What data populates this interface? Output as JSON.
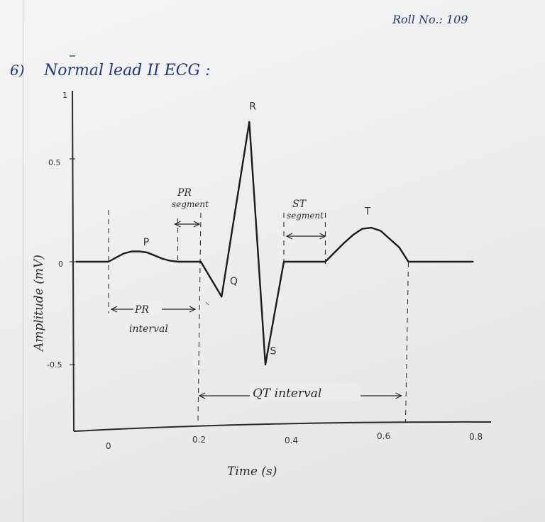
{
  "header": {
    "roll_no": "Roll No.: 109",
    "question_number": "6)",
    "title": "Normal lead II ECG :"
  },
  "chart_data": {
    "type": "line",
    "title": "Normal lead II ECG",
    "xlabel": "Time (s)",
    "ylabel": "Amplitude (mV)",
    "xlim": [
      0,
      0.8
    ],
    "ylim": [
      -0.75,
      1
    ],
    "x_ticks": [
      {
        "value": 0,
        "label": "0"
      },
      {
        "value": 0.2,
        "label": "0.2"
      },
      {
        "value": 0.4,
        "label": "0.4"
      },
      {
        "value": 0.6,
        "label": "0.6"
      },
      {
        "value": 0.8,
        "label": "0.8"
      }
    ],
    "y_ticks": [
      {
        "value": 1,
        "label": "1"
      },
      {
        "value": 0.5,
        "label": "0.5"
      },
      {
        "value": 0,
        "label": "0"
      },
      {
        "value": -0.5,
        "label": "-0.5"
      }
    ],
    "grid": false,
    "series": [
      {
        "name": "Lead II",
        "x": [
          -0.07,
          0.0,
          0.016,
          0.033,
          0.05,
          0.067,
          0.083,
          0.1,
          0.116,
          0.133,
          0.15,
          0.2,
          0.245,
          0.305,
          0.34,
          0.38,
          0.47,
          0.49,
          0.51,
          0.53,
          0.55,
          0.57,
          0.59,
          0.61,
          0.63,
          0.65,
          0.79
        ],
        "y": [
          0,
          0,
          0.02,
          0.04,
          0.05,
          0.05,
          0.045,
          0.03,
          0.015,
          0.005,
          0,
          0,
          -0.17,
          0.68,
          -0.5,
          0,
          0,
          0.045,
          0.09,
          0.13,
          0.16,
          0.165,
          0.15,
          0.11,
          0.07,
          0,
          0
        ]
      }
    ],
    "annotations": [
      {
        "text": "P",
        "x": 0.075,
        "y": 0.08
      },
      {
        "text": "R",
        "x": 0.305,
        "y": 0.74
      },
      {
        "text": "Q",
        "x": 0.263,
        "y": -0.11
      },
      {
        "text": "S",
        "x": 0.35,
        "y": -0.45
      },
      {
        "text": "T",
        "x": 0.555,
        "y": 0.23
      }
    ],
    "intervals": [
      {
        "label_line1": "PR",
        "label_line2": "segment",
        "x_start": 0.15,
        "x_end": 0.2,
        "kind": "segment"
      },
      {
        "label_line1": "ST",
        "label_line2": "segment",
        "x_start": 0.38,
        "x_end": 0.47,
        "kind": "segment"
      },
      {
        "label_line1": "PR",
        "label_line2": "interval",
        "x_start": 0.0,
        "x_end": 0.2,
        "kind": "interval"
      },
      {
        "label_line1": "QT interval",
        "label_line2": "",
        "x_start": 0.2,
        "x_end": 0.65,
        "kind": "interval"
      }
    ]
  }
}
